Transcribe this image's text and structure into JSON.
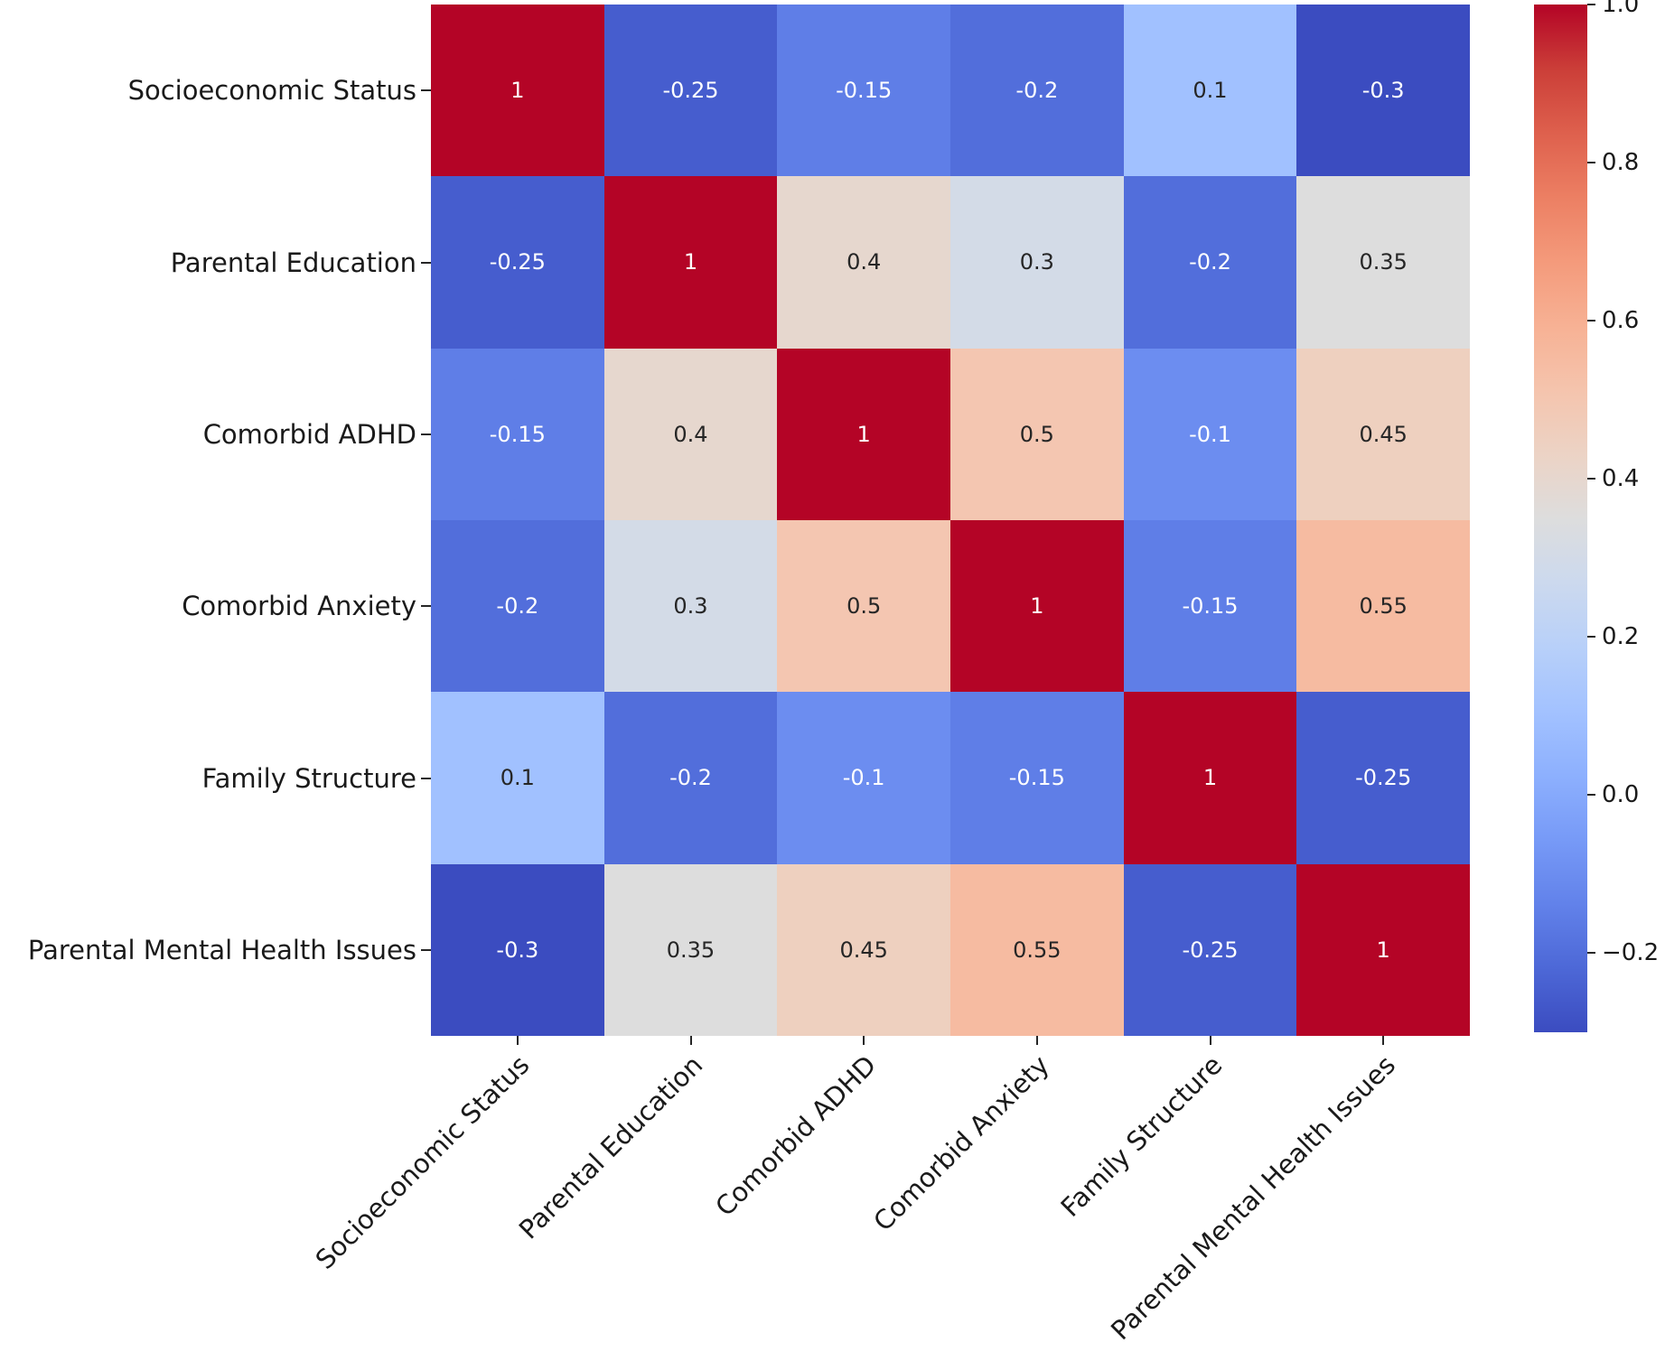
{
  "chart_data": {
    "type": "heatmap",
    "title": "",
    "xlabel": "",
    "ylabel": "",
    "categories": [
      "Socioeconomic Status",
      "Parental Education",
      "Comorbid ADHD",
      "Comorbid Anxiety",
      "Family Structure",
      "Parental Mental Health Issues"
    ],
    "matrix": [
      [
        1,
        -0.25,
        -0.15,
        -0.2,
        0.1,
        -0.3
      ],
      [
        -0.25,
        1,
        0.4,
        0.3,
        -0.2,
        0.35
      ],
      [
        -0.15,
        0.4,
        1,
        0.5,
        -0.1,
        0.45
      ],
      [
        -0.2,
        0.3,
        0.5,
        1,
        -0.15,
        0.55
      ],
      [
        0.1,
        -0.2,
        -0.1,
        -0.15,
        1,
        -0.25
      ],
      [
        -0.3,
        0.35,
        0.45,
        0.55,
        -0.25,
        1
      ]
    ],
    "annotations": true,
    "colormap": "coolwarm",
    "vmin": -0.3,
    "vmax": 1.0,
    "x_tick_rotation": 45,
    "grid": false,
    "colorbar": {
      "position": "right",
      "ticks": [
        {
          "value": 1.0,
          "label": "1.0"
        },
        {
          "value": 0.8,
          "label": "0.8"
        },
        {
          "value": 0.6,
          "label": "0.6"
        },
        {
          "value": 0.4,
          "label": "0.4"
        },
        {
          "value": 0.2,
          "label": "0.2"
        },
        {
          "value": 0.0,
          "label": "0.0"
        },
        {
          "value": -0.2,
          "label": "−0.2"
        }
      ]
    },
    "colors": {
      "max_color": "#b40426",
      "mid_color": "#dddddd",
      "min_color": "#3b4cc0",
      "dark_text": "#262626",
      "light_text": "#ffffff"
    }
  }
}
